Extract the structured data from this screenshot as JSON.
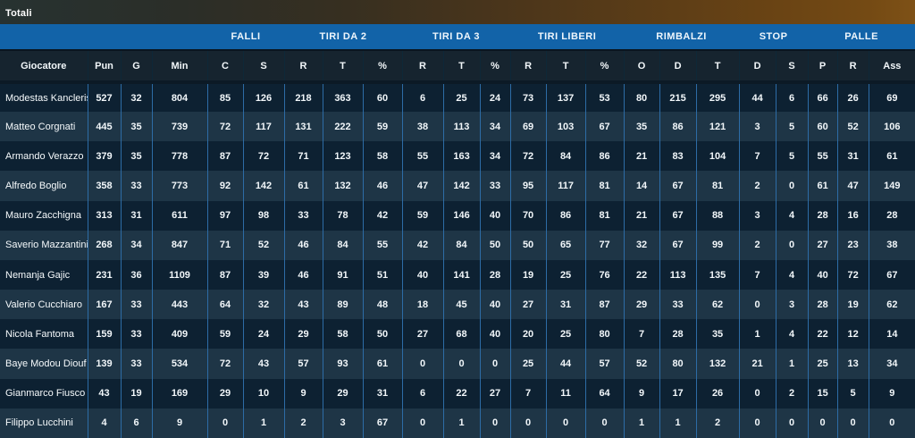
{
  "title": "Totali",
  "colors": {
    "header_blue": "#1263a8",
    "subheader_bg": "#16242f",
    "row_dark": "#0d2132",
    "row_light": "#1e3546",
    "grid_line": "#2d6ca6",
    "topbar_gradient_left": "#273231",
    "topbar_gradient_right": "#7e5116",
    "text": "#f2f7fa"
  },
  "table": {
    "group_headers": [
      {
        "label": "",
        "span": 4
      },
      {
        "label": "FALLI",
        "span": 2
      },
      {
        "label": "TIRI DA 2",
        "span": 3
      },
      {
        "label": "TIRI DA 3",
        "span": 3
      },
      {
        "label": "TIRI LIBERI",
        "span": 3
      },
      {
        "label": "RIMBALZI",
        "span": 3
      },
      {
        "label": "STOP",
        "span": 2
      },
      {
        "label": "PALLE",
        "span": 3
      }
    ],
    "columns": [
      "Giocatore",
      "Pun",
      "G",
      "Min",
      "C",
      "S",
      "R",
      "T",
      "%",
      "R",
      "T",
      "%",
      "R",
      "T",
      "%",
      "O",
      "D",
      "T",
      "D",
      "S",
      "P",
      "R",
      "Ass"
    ],
    "rows": [
      {
        "player": "Modestas Kancleris",
        "values": [
          527,
          32,
          804,
          85,
          126,
          218,
          363,
          60,
          6,
          25,
          24,
          73,
          137,
          53,
          80,
          215,
          295,
          44,
          6,
          66,
          26,
          69
        ]
      },
      {
        "player": "Matteo Corgnati",
        "values": [
          445,
          35,
          739,
          72,
          117,
          131,
          222,
          59,
          38,
          113,
          34,
          69,
          103,
          67,
          35,
          86,
          121,
          3,
          5,
          60,
          52,
          106
        ]
      },
      {
        "player": "Armando Verazzo",
        "values": [
          379,
          35,
          778,
          87,
          72,
          71,
          123,
          58,
          55,
          163,
          34,
          72,
          84,
          86,
          21,
          83,
          104,
          7,
          5,
          55,
          31,
          61
        ]
      },
      {
        "player": "Alfredo Boglio",
        "values": [
          358,
          33,
          773,
          92,
          142,
          61,
          132,
          46,
          47,
          142,
          33,
          95,
          117,
          81,
          14,
          67,
          81,
          2,
          0,
          61,
          47,
          149
        ]
      },
      {
        "player": "Mauro Zacchigna",
        "values": [
          313,
          31,
          611,
          97,
          98,
          33,
          78,
          42,
          59,
          146,
          40,
          70,
          86,
          81,
          21,
          67,
          88,
          3,
          4,
          28,
          16,
          28
        ]
      },
      {
        "player": "Saverio Mazzantini",
        "values": [
          268,
          34,
          847,
          71,
          52,
          46,
          84,
          55,
          42,
          84,
          50,
          50,
          65,
          77,
          32,
          67,
          99,
          2,
          0,
          27,
          23,
          38
        ]
      },
      {
        "player": "Nemanja Gajic",
        "values": [
          231,
          36,
          1109,
          87,
          39,
          46,
          91,
          51,
          40,
          141,
          28,
          19,
          25,
          76,
          22,
          113,
          135,
          7,
          4,
          40,
          72,
          67
        ]
      },
      {
        "player": "Valerio Cucchiaro",
        "values": [
          167,
          33,
          443,
          64,
          32,
          43,
          89,
          48,
          18,
          45,
          40,
          27,
          31,
          87,
          29,
          33,
          62,
          0,
          3,
          28,
          19,
          62
        ]
      },
      {
        "player": "Nicola Fantoma",
        "values": [
          159,
          33,
          409,
          59,
          24,
          29,
          58,
          50,
          27,
          68,
          40,
          20,
          25,
          80,
          7,
          28,
          35,
          1,
          4,
          22,
          12,
          14
        ]
      },
      {
        "player": "Baye Modou Diouf",
        "values": [
          139,
          33,
          534,
          72,
          43,
          57,
          93,
          61,
          0,
          0,
          0,
          25,
          44,
          57,
          52,
          80,
          132,
          21,
          1,
          25,
          13,
          34
        ]
      },
      {
        "player": "Gianmarco Fiusco",
        "values": [
          43,
          19,
          169,
          29,
          10,
          9,
          29,
          31,
          6,
          22,
          27,
          7,
          11,
          64,
          9,
          17,
          26,
          0,
          2,
          15,
          5,
          9
        ]
      },
      {
        "player": "Filippo Lucchini",
        "values": [
          4,
          6,
          9,
          0,
          1,
          2,
          3,
          67,
          0,
          1,
          0,
          0,
          0,
          0,
          1,
          1,
          2,
          0,
          0,
          0,
          0,
          0
        ]
      }
    ]
  }
}
